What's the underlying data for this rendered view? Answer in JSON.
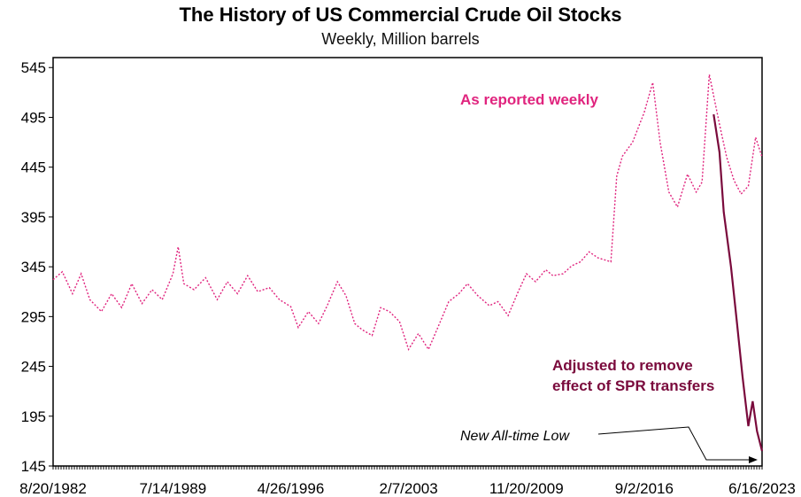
{
  "chart_data": {
    "type": "line",
    "title": "The History of US Commercial Crude Oil Stocks",
    "subtitle": "Weekly, Million barrels",
    "ylim": [
      145,
      555
    ],
    "y_ticks": [
      145,
      195,
      245,
      295,
      345,
      395,
      445,
      495,
      545
    ],
    "xlim": [
      "1982-08-20",
      "2023-06-16"
    ],
    "x_ticks": [
      "8/20/1982",
      "7/14/1989",
      "4/26/1996",
      "2/7/2003",
      "11/20/2009",
      "9/2/2016",
      "6/16/2023"
    ],
    "grid": false,
    "series": [
      {
        "name": "As reported weekly",
        "color": "#e0247e",
        "style": "dotted",
        "points": [
          [
            "1982-08-20",
            332
          ],
          [
            "1983-03-01",
            340
          ],
          [
            "1983-10-01",
            318
          ],
          [
            "1984-04-01",
            338
          ],
          [
            "1984-10-01",
            312
          ],
          [
            "1985-06-01",
            300
          ],
          [
            "1986-01-01",
            318
          ],
          [
            "1986-08-01",
            304
          ],
          [
            "1987-03-01",
            328
          ],
          [
            "1987-10-01",
            308
          ],
          [
            "1988-05-01",
            322
          ],
          [
            "1988-12-01",
            312
          ],
          [
            "1989-07-14",
            338
          ],
          [
            "1989-11-01",
            365
          ],
          [
            "1990-03-01",
            328
          ],
          [
            "1990-10-01",
            322
          ],
          [
            "1991-06-01",
            334
          ],
          [
            "1992-02-01",
            312
          ],
          [
            "1992-09-01",
            330
          ],
          [
            "1993-04-01",
            318
          ],
          [
            "1993-11-01",
            336
          ],
          [
            "1994-06-01",
            320
          ],
          [
            "1995-02-01",
            324
          ],
          [
            "1995-09-01",
            312
          ],
          [
            "1996-04-26",
            305
          ],
          [
            "1996-10-01",
            284
          ],
          [
            "1997-05-01",
            300
          ],
          [
            "1997-12-01",
            288
          ],
          [
            "1998-06-01",
            306
          ],
          [
            "1999-01-01",
            330
          ],
          [
            "1999-07-01",
            316
          ],
          [
            "2000-01-01",
            288
          ],
          [
            "2000-06-01",
            282
          ],
          [
            "2001-01-01",
            276
          ],
          [
            "2001-07-01",
            304
          ],
          [
            "2002-01-01",
            300
          ],
          [
            "2002-08-01",
            290
          ],
          [
            "2003-02-07",
            262
          ],
          [
            "2003-09-01",
            278
          ],
          [
            "2004-04-01",
            262
          ],
          [
            "2004-11-01",
            286
          ],
          [
            "2005-06-01",
            310
          ],
          [
            "2006-01-01",
            318
          ],
          [
            "2006-07-01",
            328
          ],
          [
            "2007-02-01",
            316
          ],
          [
            "2007-10-01",
            306
          ],
          [
            "2008-04-01",
            310
          ],
          [
            "2008-11-01",
            296
          ],
          [
            "2009-06-01",
            320
          ],
          [
            "2009-11-20",
            338
          ],
          [
            "2010-06-01",
            330
          ],
          [
            "2011-01-01",
            342
          ],
          [
            "2011-06-01",
            336
          ],
          [
            "2012-01-01",
            338
          ],
          [
            "2012-07-01",
            346
          ],
          [
            "2013-01-01",
            350
          ],
          [
            "2013-07-01",
            360
          ],
          [
            "2014-01-01",
            354
          ],
          [
            "2014-10-01",
            350
          ],
          [
            "2015-02-01",
            436
          ],
          [
            "2015-06-01",
            456
          ],
          [
            "2016-01-01",
            470
          ],
          [
            "2016-09-02",
            500
          ],
          [
            "2017-03-01",
            530
          ],
          [
            "2017-08-01",
            470
          ],
          [
            "2018-02-01",
            420
          ],
          [
            "2018-08-01",
            405
          ],
          [
            "2019-03-01",
            438
          ],
          [
            "2019-09-01",
            420
          ],
          [
            "2020-01-01",
            430
          ],
          [
            "2020-06-01",
            538
          ],
          [
            "2021-01-01",
            488
          ],
          [
            "2021-06-01",
            455
          ],
          [
            "2021-11-01",
            432
          ],
          [
            "2022-04-01",
            418
          ],
          [
            "2022-09-01",
            426
          ],
          [
            "2023-02-01",
            475
          ],
          [
            "2023-06-16",
            455
          ]
        ]
      },
      {
        "name": "Adjusted to remove effect of SPR transfers",
        "color": "#7a0a3c",
        "style": "solid",
        "points": [
          [
            "2020-09-01",
            498
          ],
          [
            "2021-01-01",
            460
          ],
          [
            "2021-04-01",
            400
          ],
          [
            "2021-09-01",
            345
          ],
          [
            "2022-01-01",
            290
          ],
          [
            "2022-05-01",
            235
          ],
          [
            "2022-09-01",
            185
          ],
          [
            "2022-12-01",
            210
          ],
          [
            "2023-03-01",
            180
          ],
          [
            "2023-06-16",
            160
          ]
        ]
      }
    ],
    "annotations": {
      "series1_label": "As reported weekly",
      "series2_label_line1": "Adjusted to remove",
      "series2_label_line2": "effect of SPR transfers",
      "low_callout": "New All-time Low"
    }
  }
}
